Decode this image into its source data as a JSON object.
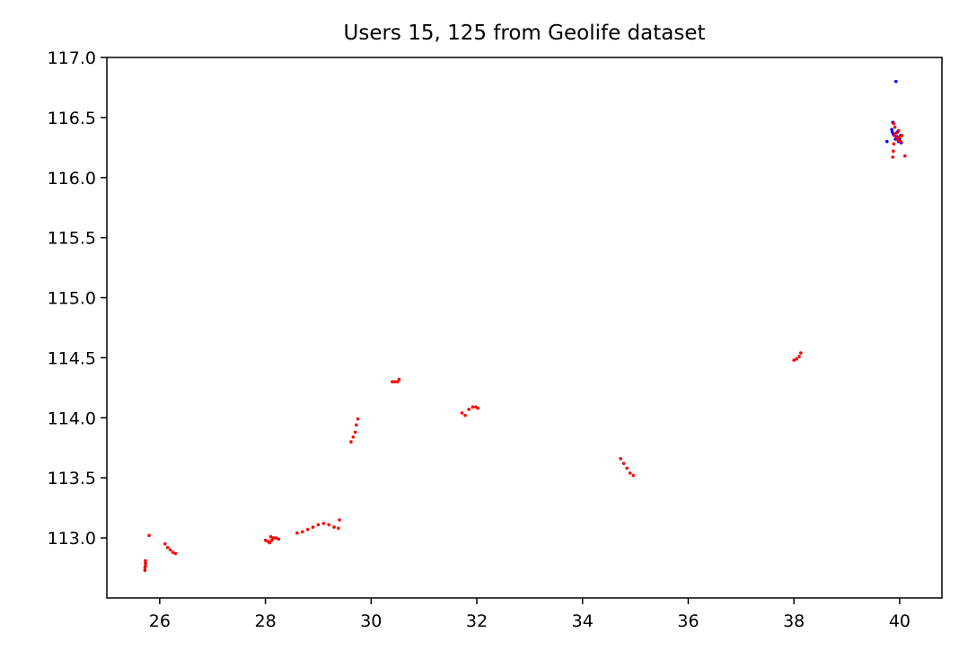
{
  "colors": {
    "user_15": "#0000ff",
    "user_125": "#ff0000",
    "axes": "#000000"
  },
  "chart_data": {
    "type": "scatter",
    "title": "Users 15, 125 from Geolife dataset",
    "xlabel": "",
    "ylabel": "",
    "xlim": [
      25.0,
      40.8
    ],
    "ylim": [
      112.5,
      117.0
    ],
    "xticks": [
      26,
      28,
      30,
      32,
      34,
      36,
      38,
      40
    ],
    "xtick_labels": [
      "26",
      "28",
      "30",
      "32",
      "34",
      "36",
      "38",
      "40"
    ],
    "yticks": [
      113.0,
      113.5,
      114.0,
      114.5,
      115.0,
      115.5,
      116.0,
      116.5,
      117.0
    ],
    "ytick_labels": [
      "113.0",
      "113.5",
      "114.0",
      "114.5",
      "115.0",
      "115.5",
      "116.0",
      "116.5",
      "117.0"
    ],
    "grid": false,
    "legend": "none",
    "series": [
      {
        "color": "#0000ff",
        "points": [
          [
            39.93,
            116.8
          ],
          [
            39.87,
            116.46
          ],
          [
            39.85,
            116.4
          ],
          [
            39.86,
            116.38
          ],
          [
            39.88,
            116.36
          ],
          [
            39.9,
            116.35
          ],
          [
            39.76,
            116.3
          ],
          [
            39.95,
            116.34
          ],
          [
            40.0,
            116.32
          ],
          [
            39.98,
            116.3
          ],
          [
            40.03,
            116.29
          ],
          [
            39.96,
            116.38
          ],
          [
            40.02,
            116.35
          ],
          [
            39.92,
            116.32
          ]
        ]
      },
      {
        "color": "#ff0000",
        "points": [
          [
            25.72,
            112.73
          ],
          [
            25.72,
            112.75
          ],
          [
            25.73,
            112.77
          ],
          [
            25.73,
            112.79
          ],
          [
            25.73,
            112.81
          ],
          [
            25.8,
            113.02
          ],
          [
            26.1,
            112.95
          ],
          [
            26.15,
            112.92
          ],
          [
            26.2,
            112.9
          ],
          [
            26.25,
            112.88
          ],
          [
            26.3,
            112.87
          ],
          [
            28.0,
            112.98
          ],
          [
            28.05,
            112.97
          ],
          [
            28.08,
            112.96
          ],
          [
            28.12,
            112.98
          ],
          [
            28.1,
            113.01
          ],
          [
            28.15,
            113.0
          ],
          [
            28.2,
            113.0
          ],
          [
            28.25,
            112.99
          ],
          [
            28.6,
            113.04
          ],
          [
            28.7,
            113.05
          ],
          [
            28.8,
            113.07
          ],
          [
            28.9,
            113.09
          ],
          [
            29.0,
            113.11
          ],
          [
            29.1,
            113.12
          ],
          [
            29.2,
            113.11
          ],
          [
            29.3,
            113.09
          ],
          [
            29.38,
            113.08
          ],
          [
            29.4,
            113.15
          ],
          [
            29.62,
            113.8
          ],
          [
            29.66,
            113.84
          ],
          [
            29.7,
            113.88
          ],
          [
            29.72,
            113.94
          ],
          [
            29.75,
            113.99
          ],
          [
            30.4,
            114.3
          ],
          [
            30.45,
            114.3
          ],
          [
            30.5,
            114.3
          ],
          [
            30.53,
            114.32
          ],
          [
            31.72,
            114.04
          ],
          [
            31.78,
            114.02
          ],
          [
            31.85,
            114.07
          ],
          [
            31.92,
            114.09
          ],
          [
            31.98,
            114.09
          ],
          [
            32.02,
            114.08
          ],
          [
            34.72,
            113.66
          ],
          [
            34.78,
            113.62
          ],
          [
            34.84,
            113.58
          ],
          [
            34.9,
            113.54
          ],
          [
            34.96,
            113.52
          ],
          [
            38.0,
            114.48
          ],
          [
            38.05,
            114.49
          ],
          [
            38.1,
            114.51
          ],
          [
            38.13,
            114.54
          ],
          [
            39.87,
            116.17
          ],
          [
            39.88,
            116.22
          ],
          [
            39.89,
            116.28
          ],
          [
            39.9,
            116.35
          ],
          [
            39.91,
            116.42
          ],
          [
            39.89,
            116.45
          ],
          [
            39.93,
            116.37
          ],
          [
            39.95,
            116.33
          ],
          [
            39.98,
            116.39
          ],
          [
            40.0,
            116.34
          ],
          [
            40.02,
            116.3
          ],
          [
            40.04,
            116.35
          ],
          [
            39.97,
            116.31
          ],
          [
            40.1,
            116.18
          ]
        ]
      }
    ]
  }
}
